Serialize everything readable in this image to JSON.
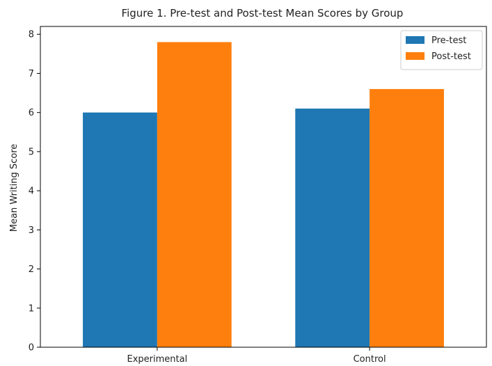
{
  "chart_data": {
    "type": "bar",
    "title": "Figure 1. Pre-test and Post-test Mean Scores by Group",
    "xlabel": "",
    "ylabel": "Mean Writing Score",
    "categories": [
      "Experimental",
      "Control"
    ],
    "series": [
      {
        "name": "Pre-test",
        "values": [
          6.0,
          6.1
        ],
        "color": "#1f77b4"
      },
      {
        "name": "Post-test",
        "values": [
          7.8,
          6.6
        ],
        "color": "#ff7f0e"
      }
    ],
    "ylim": [
      0,
      8.2
    ],
    "yticks": [
      0,
      1,
      2,
      3,
      4,
      5,
      6,
      7,
      8
    ],
    "grid": false,
    "legend_position": "top-right"
  }
}
